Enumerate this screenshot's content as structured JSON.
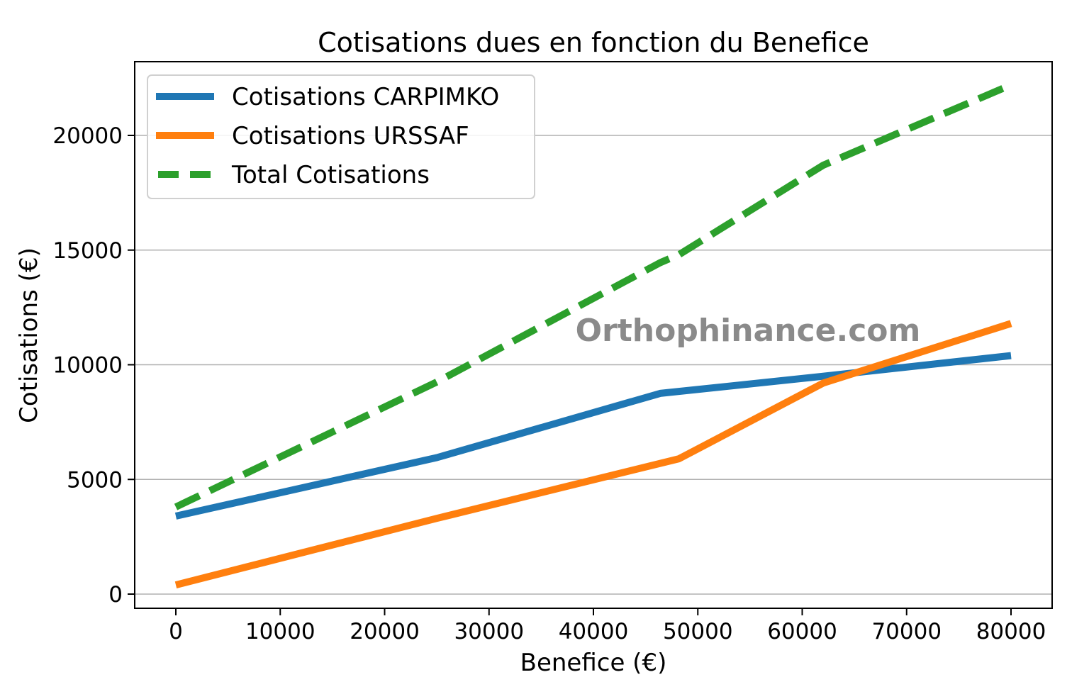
{
  "chart_data": {
    "type": "line",
    "title": "Cotisations dues en fonction du Benefice",
    "xlabel": "Benefice (€)",
    "ylabel": "Cotisations (€)",
    "xlim": [
      -4000,
      84000
    ],
    "ylim": [
      -600,
      23200
    ],
    "x_ticks": [
      0,
      10000,
      20000,
      30000,
      40000,
      50000,
      60000,
      70000,
      80000
    ],
    "y_ticks": [
      0,
      5000,
      10000,
      15000,
      20000
    ],
    "grid": {
      "y": true,
      "x": false
    },
    "legend_position": "upper left",
    "watermark": "Orthophinance.com",
    "series": [
      {
        "name": "Cotisations CARPIMKO",
        "color": "#1f77b4",
        "style": "solid",
        "points": [
          [
            0,
            3400
          ],
          [
            25000,
            5950
          ],
          [
            46400,
            8750
          ],
          [
            62000,
            9500
          ],
          [
            80000,
            10400
          ]
        ]
      },
      {
        "name": "Cotisations URSSAF",
        "color": "#ff7f0e",
        "style": "solid",
        "points": [
          [
            0,
            400
          ],
          [
            25000,
            3300
          ],
          [
            48200,
            5900
          ],
          [
            62000,
            9200
          ],
          [
            80000,
            11800
          ]
        ]
      },
      {
        "name": "Total Cotisations",
        "color": "#2ca02c",
        "style": "dashed",
        "points": [
          [
            0,
            3800
          ],
          [
            25000,
            9250
          ],
          [
            46400,
            14450
          ],
          [
            48200,
            14800
          ],
          [
            62000,
            18700
          ],
          [
            80000,
            22200
          ]
        ]
      }
    ]
  }
}
